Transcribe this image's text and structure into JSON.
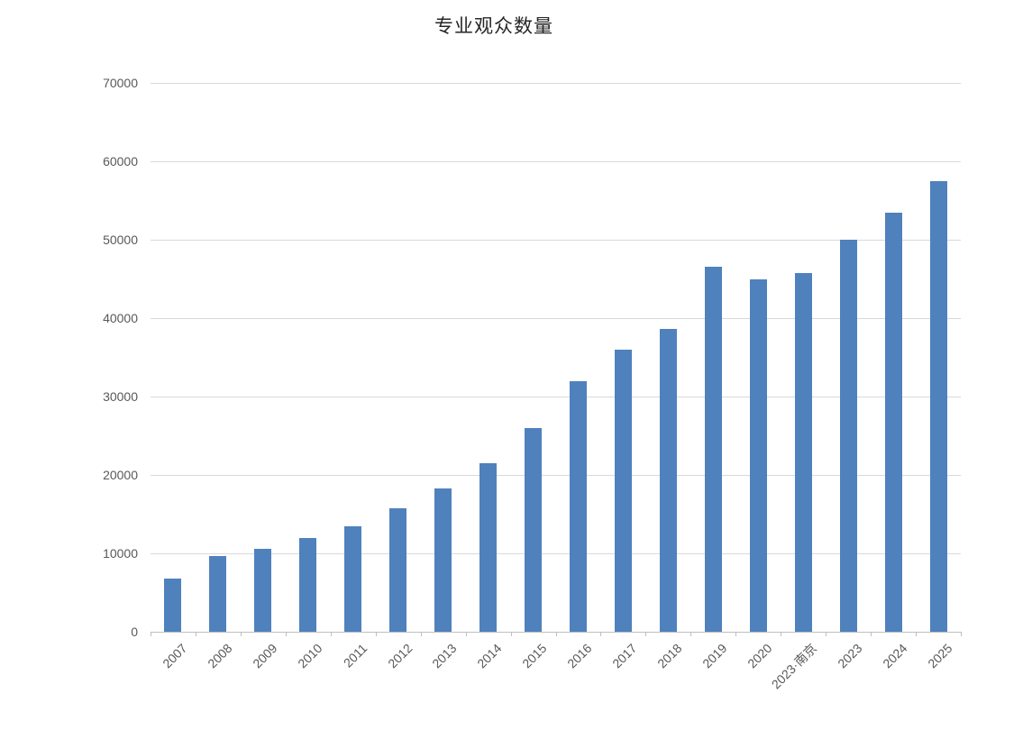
{
  "chart_data": {
    "type": "bar",
    "title": "专业观众数量",
    "categories": [
      "2007",
      "2008",
      "2009",
      "2010",
      "2011",
      "2012",
      "2013",
      "2014",
      "2015",
      "2016",
      "2017",
      "2018",
      "2019",
      "2020",
      "2023·南京",
      "2023",
      "2024",
      "2025"
    ],
    "values": [
      6800,
      9700,
      10600,
      12000,
      13500,
      15700,
      18300,
      21500,
      26000,
      32000,
      36000,
      38600,
      46600,
      45000,
      45700,
      50000,
      53400,
      57500
    ],
    "series_name": "专业观众数量",
    "xlabel": "",
    "ylabel": "",
    "ylim": [
      0,
      70000
    ],
    "yticks": [
      0,
      10000,
      20000,
      30000,
      40000,
      50000,
      60000,
      70000
    ],
    "ytick_labels": [
      "0",
      "10000",
      "20000",
      "30000",
      "40000",
      "50000",
      "60000",
      "70000"
    ],
    "grid": true,
    "legend": false,
    "bar_color": "#4f81bd",
    "gridline_color": "#d9d9d9",
    "axis_color": "#bfbfbf",
    "tick_label_color": "#595959",
    "title_color": "#262626"
  }
}
